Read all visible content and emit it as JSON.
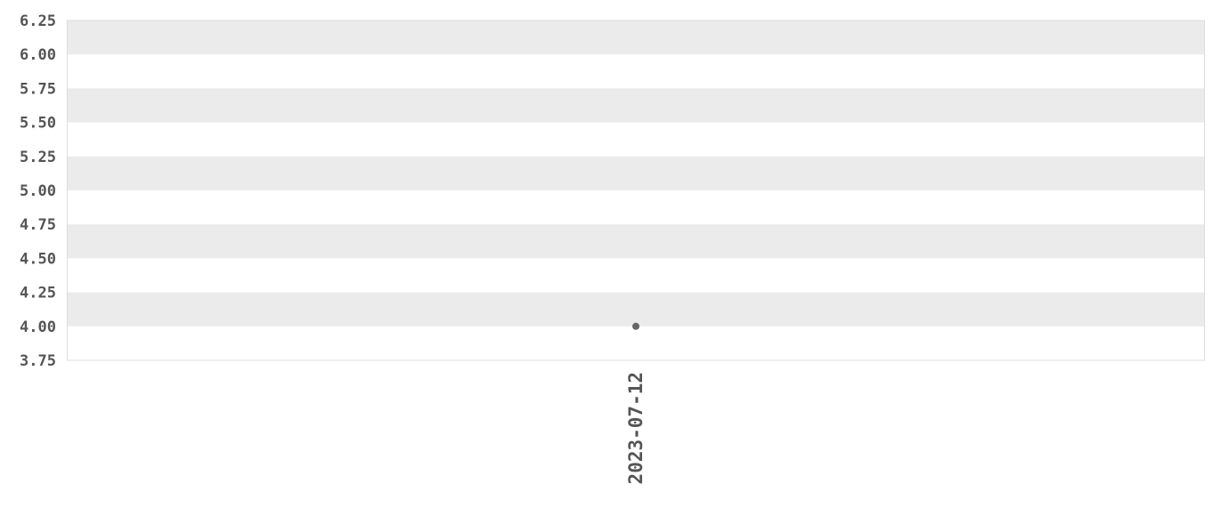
{
  "chart_data": {
    "type": "scatter",
    "title": "",
    "xlabel": "",
    "ylabel": "",
    "ylim": [
      3.75,
      6.25
    ],
    "yticks": [
      "3.75",
      "4.00",
      "4.25",
      "4.50",
      "4.75",
      "5.00",
      "5.25",
      "5.50",
      "5.75",
      "6.00",
      "6.25"
    ],
    "categories": [
      "2023-07-12"
    ],
    "points": [
      {
        "x": "2023-07-12",
        "y": 4.0
      }
    ],
    "grid": "alternating horizontal bands",
    "colors": {
      "band": "#ebebeb",
      "point": "#666666",
      "text": "#555555",
      "border": "#dddddd"
    }
  }
}
